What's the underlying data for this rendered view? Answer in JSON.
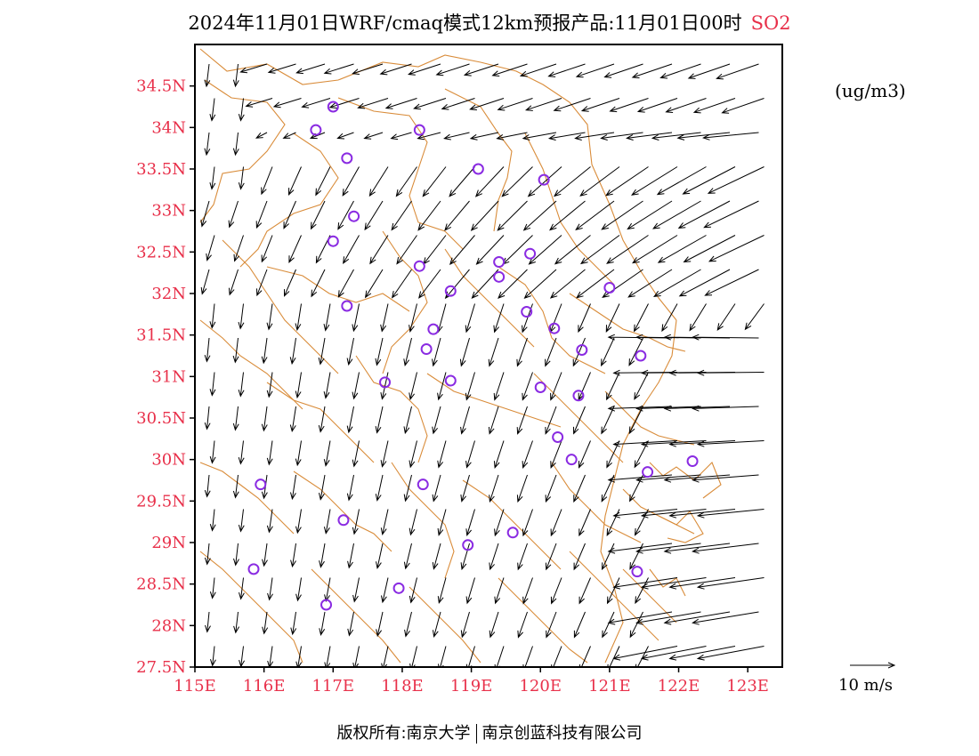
{
  "title": {
    "main": "2024年11月01日WRF/cmaq模式12km预报产品:11月01日00时",
    "pollutant": "SO2"
  },
  "units": "(ug/m3)",
  "wind_scale": {
    "label": "10 m/s",
    "speed": 10
  },
  "copyright": {
    "left": "版权所有:南京大学",
    "right": "南京创蓝科技有限公司"
  },
  "colors": {
    "axis_label": "#e8304a",
    "pollutant": "#e8304a",
    "boundary": "#d98c3a",
    "station": "#8a2be2",
    "arrow": "#000000"
  },
  "axes": {
    "lon_range": [
      115,
      123.5
    ],
    "lat_range": [
      27.5,
      35.0
    ],
    "x_ticks": [
      "115E",
      "116E",
      "117E",
      "118E",
      "119E",
      "120E",
      "121E",
      "122E",
      "123E"
    ],
    "y_ticks": [
      "27.5N",
      "28N",
      "28.5N",
      "29N",
      "29.5N",
      "30N",
      "30.5N",
      "31N",
      "31.5N",
      "32N",
      "32.5N",
      "33N",
      "33.5N",
      "34N",
      "34.5N"
    ]
  },
  "stations": [
    [
      117.0,
      34.25
    ],
    [
      116.75,
      33.97
    ],
    [
      118.25,
      33.97
    ],
    [
      117.2,
      33.63
    ],
    [
      119.1,
      33.5
    ],
    [
      120.05,
      33.37
    ],
    [
      117.3,
      32.93
    ],
    [
      117.0,
      32.63
    ],
    [
      118.25,
      32.33
    ],
    [
      119.4,
      32.38
    ],
    [
      119.85,
      32.48
    ],
    [
      118.7,
      32.03
    ],
    [
      119.4,
      32.2
    ],
    [
      121.0,
      32.07
    ],
    [
      117.2,
      31.85
    ],
    [
      119.8,
      31.78
    ],
    [
      118.45,
      31.57
    ],
    [
      120.2,
      31.58
    ],
    [
      118.35,
      31.33
    ],
    [
      120.6,
      31.32
    ],
    [
      121.45,
      31.25
    ],
    [
      117.75,
      30.93
    ],
    [
      118.7,
      30.95
    ],
    [
      120.0,
      30.87
    ],
    [
      120.55,
      30.77
    ],
    [
      120.25,
      30.27
    ],
    [
      120.45,
      30.0
    ],
    [
      121.55,
      29.85
    ],
    [
      122.2,
      29.98
    ],
    [
      115.95,
      29.7
    ],
    [
      118.3,
      29.7
    ],
    [
      117.15,
      29.27
    ],
    [
      119.6,
      29.12
    ],
    [
      118.95,
      28.97
    ],
    [
      115.85,
      28.68
    ],
    [
      121.4,
      28.65
    ],
    [
      117.95,
      28.45
    ],
    [
      116.9,
      28.25
    ]
  ]
}
